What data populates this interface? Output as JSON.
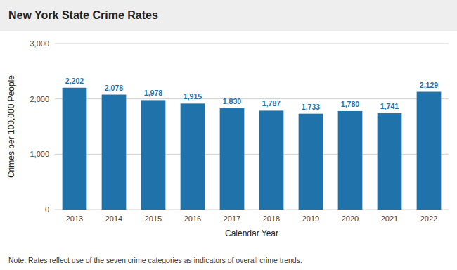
{
  "chart_data": {
    "type": "bar",
    "title": "New York State Crime Rates",
    "xlabel": "Calendar Year",
    "ylabel": "Crimes per 100,000 People",
    "annotations": [
      "Note: Rates reflect use of the seven crime categories as indicators of overall crime trends."
    ],
    "categories": [
      "2013",
      "2014",
      "2015",
      "2016",
      "2017",
      "2018",
      "2019",
      "2020",
      "2021",
      "2022"
    ],
    "values": [
      2202,
      2078,
      1978,
      1915,
      1830,
      1787,
      1733,
      1780,
      1741,
      2129
    ],
    "value_labels": [
      "2,202",
      "2,078",
      "1,978",
      "1,915",
      "1,830",
      "1,787",
      "1,733",
      "1,780",
      "1,741",
      "2,129"
    ],
    "data_labels": true,
    "color": "#1F72AA",
    "ylim": [
      0,
      3000
    ],
    "yticks": [
      0,
      {
        "value": 1000,
        "label": "1,000"
      },
      {
        "value": 2000,
        "label": "2,000"
      },
      {
        "value": 3000,
        "label": "3,000"
      }
    ],
    "grid": true
  }
}
